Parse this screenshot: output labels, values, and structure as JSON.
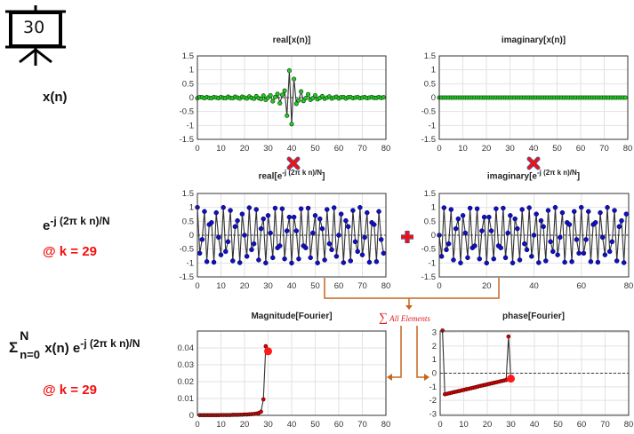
{
  "slide_number": "30",
  "labels": {
    "signal": "x(n)",
    "basis_base": "e",
    "basis_exp": "-j (2π k n)/N",
    "k_note_1": "@ k = 29",
    "sum_symbol": "Σ",
    "sum_upper": "N",
    "sum_lower": "n=0",
    "sum_body": "x(n) e",
    "sum_exp": "-j (2π k n)/N",
    "k_note_2": "@ k = 29",
    "sum_all": "∑",
    "sum_all_text": "All Elements"
  },
  "colors": {
    "accent_red": "#f01010",
    "connector": "#c8641e",
    "green_marker": "#22cc22",
    "blue_marker": "#1010c0",
    "red_marker": "#e00000"
  },
  "titles": {
    "real_x": "real[x(n)]",
    "imag_x": "imaginary[x(n)]",
    "real_basis_pre": "real[e",
    "real_basis_exp": "-j (2π k n)/N",
    "real_basis_post": "]",
    "imag_basis_pre": "imaginary[e",
    "imag_basis_exp": "-j (2π k n)/N",
    "imag_basis_post": "]",
    "magnitude": "Magnitude[Fourier]",
    "phase": "phase[Fourier]"
  },
  "chart_data": [
    {
      "id": "real_x",
      "type": "line",
      "title": "real[x(n)]",
      "xlim": [
        0,
        80
      ],
      "ylim": [
        -1.5,
        1.5
      ],
      "xticks": [
        "0",
        "10",
        "20",
        "30",
        "40",
        "50",
        "60",
        "70",
        "80"
      ],
      "yticks": [
        "1.5",
        "1",
        "0.5",
        "0",
        "-0.5",
        "-1",
        "-1.5"
      ],
      "values": [
        -0.02,
        0.02,
        0.01,
        -0.02,
        0.02,
        -0.01,
        -0.02,
        0.02,
        0.0,
        -0.02,
        0.02,
        -0.01,
        -0.02,
        0.03,
        -0.01,
        -0.02,
        0.03,
        0.0,
        -0.03,
        0.03,
        0.0,
        -0.03,
        0.04,
        -0.01,
        -0.04,
        0.05,
        -0.02,
        -0.05,
        0.07,
        -0.08,
        0.0,
        0.08,
        -0.13,
        0.02,
        0.13,
        -0.2,
        0.1,
        0.25,
        -0.65,
        0.97,
        -0.95,
        0.67,
        -0.22,
        -0.1,
        0.22,
        -0.12,
        -0.02,
        0.12,
        -0.08,
        -0.02,
        0.08,
        -0.06,
        -0.01,
        0.05,
        -0.04,
        0.0,
        0.04,
        -0.03,
        0.0,
        0.03,
        -0.03,
        0.01,
        0.02,
        -0.03,
        0.01,
        0.02,
        -0.02,
        0.0,
        0.02,
        -0.02,
        0.0,
        0.02,
        -0.02,
        0.0,
        0.02,
        -0.01,
        -0.01,
        0.02,
        -0.01,
        0.01
      ]
    },
    {
      "id": "imag_x",
      "type": "line",
      "title": "imaginary[x(n)]",
      "xlim": [
        0,
        80
      ],
      "ylim": [
        -1.5,
        1.5
      ],
      "xticks": [
        "0",
        "10",
        "20",
        "30",
        "40",
        "50",
        "60",
        "70",
        "80"
      ],
      "yticks": [
        "1.5",
        "1",
        "0.5",
        "0",
        "-0.5",
        "-1",
        "-1.5"
      ],
      "values": [
        0,
        0,
        0,
        0,
        0,
        0,
        0,
        0,
        0,
        0,
        0,
        0,
        0,
        0,
        0,
        0,
        0,
        0,
        0,
        0,
        0,
        0,
        0,
        0,
        0,
        0,
        0,
        0,
        0,
        0,
        0,
        0,
        0,
        0,
        0,
        0,
        0,
        0,
        0,
        0,
        0,
        0,
        0,
        0,
        0,
        0,
        0,
        0,
        0,
        0,
        0,
        0,
        0,
        0,
        0,
        0,
        0,
        0,
        0,
        0,
        0,
        0,
        0,
        0,
        0,
        0,
        0,
        0,
        0,
        0,
        0,
        0,
        0,
        0,
        0,
        0,
        0,
        0,
        0,
        0
      ]
    },
    {
      "id": "real_basis",
      "type": "line",
      "title": "real[e^-j (2π k n)/N]",
      "formula": "cos",
      "N": 80,
      "k": 29,
      "xlim": [
        0,
        80
      ],
      "ylim": [
        -1.5,
        1.5
      ],
      "xticks": [
        "0",
        "10",
        "20",
        "30",
        "40",
        "50",
        "60",
        "70",
        "80"
      ],
      "yticks": [
        "1.5",
        "1",
        "0.5",
        "0",
        "-0.5",
        "-1",
        "-1.5"
      ]
    },
    {
      "id": "imag_basis",
      "type": "line",
      "title": "imaginary[e^-j (2π k n)/N]",
      "formula": "-sin",
      "N": 80,
      "k": 29,
      "xlim": [
        0,
        80
      ],
      "ylim": [
        -1.5,
        1.5
      ],
      "xticks": [
        "0",
        "20",
        "40",
        "60",
        "80"
      ],
      "yticks": [
        "1.5",
        "1",
        "0.5",
        "0",
        "-0.5",
        "-1",
        "-1.5"
      ]
    },
    {
      "id": "magnitude",
      "type": "line",
      "title": "Magnitude[Fourier]",
      "xlim": [
        0,
        80
      ],
      "ylim": [
        0,
        0.05
      ],
      "xticks": [
        "0",
        "10",
        "20",
        "30",
        "40",
        "50",
        "60",
        "70",
        "80"
      ],
      "yticks": [
        "0.04",
        "0.03",
        "0.02",
        "0.01",
        "0"
      ],
      "x_start": 1,
      "values": [
        0.0001,
        0.0001,
        0.0001,
        0.0001,
        0.0001,
        0.0001,
        0.0001,
        0.0001,
        0.0001,
        0.0002,
        0.0002,
        0.0002,
        0.0002,
        0.0002,
        0.0003,
        0.0003,
        0.0003,
        0.0004,
        0.0004,
        0.0005,
        0.0005,
        0.0006,
        0.0007,
        0.0008,
        0.001,
        0.0014,
        0.0022,
        0.0095,
        0.041,
        0.038
      ],
      "highlight_last": true
    },
    {
      "id": "phase",
      "type": "line",
      "title": "phase[Fourier]",
      "xlim": [
        0,
        80
      ],
      "ylim": [
        -3.1,
        3.1
      ],
      "xticks": [
        "0",
        "10",
        "20",
        "30",
        "40",
        "50",
        "60",
        "70",
        "80"
      ],
      "yticks": [
        "3",
        "2",
        "1",
        "0",
        "-1",
        "-2",
        "-3"
      ],
      "x_start": 1,
      "values": [
        3.14,
        -1.55,
        -1.51,
        -1.47,
        -1.43,
        -1.39,
        -1.35,
        -1.31,
        -1.27,
        -1.23,
        -1.19,
        -1.15,
        -1.11,
        -1.07,
        -1.03,
        -0.98,
        -0.94,
        -0.9,
        -0.86,
        -0.82,
        -0.78,
        -0.74,
        -0.7,
        -0.66,
        -0.62,
        -0.58,
        -0.54,
        -0.5,
        2.7,
        -0.4
      ],
      "highlight_last": true
    }
  ]
}
